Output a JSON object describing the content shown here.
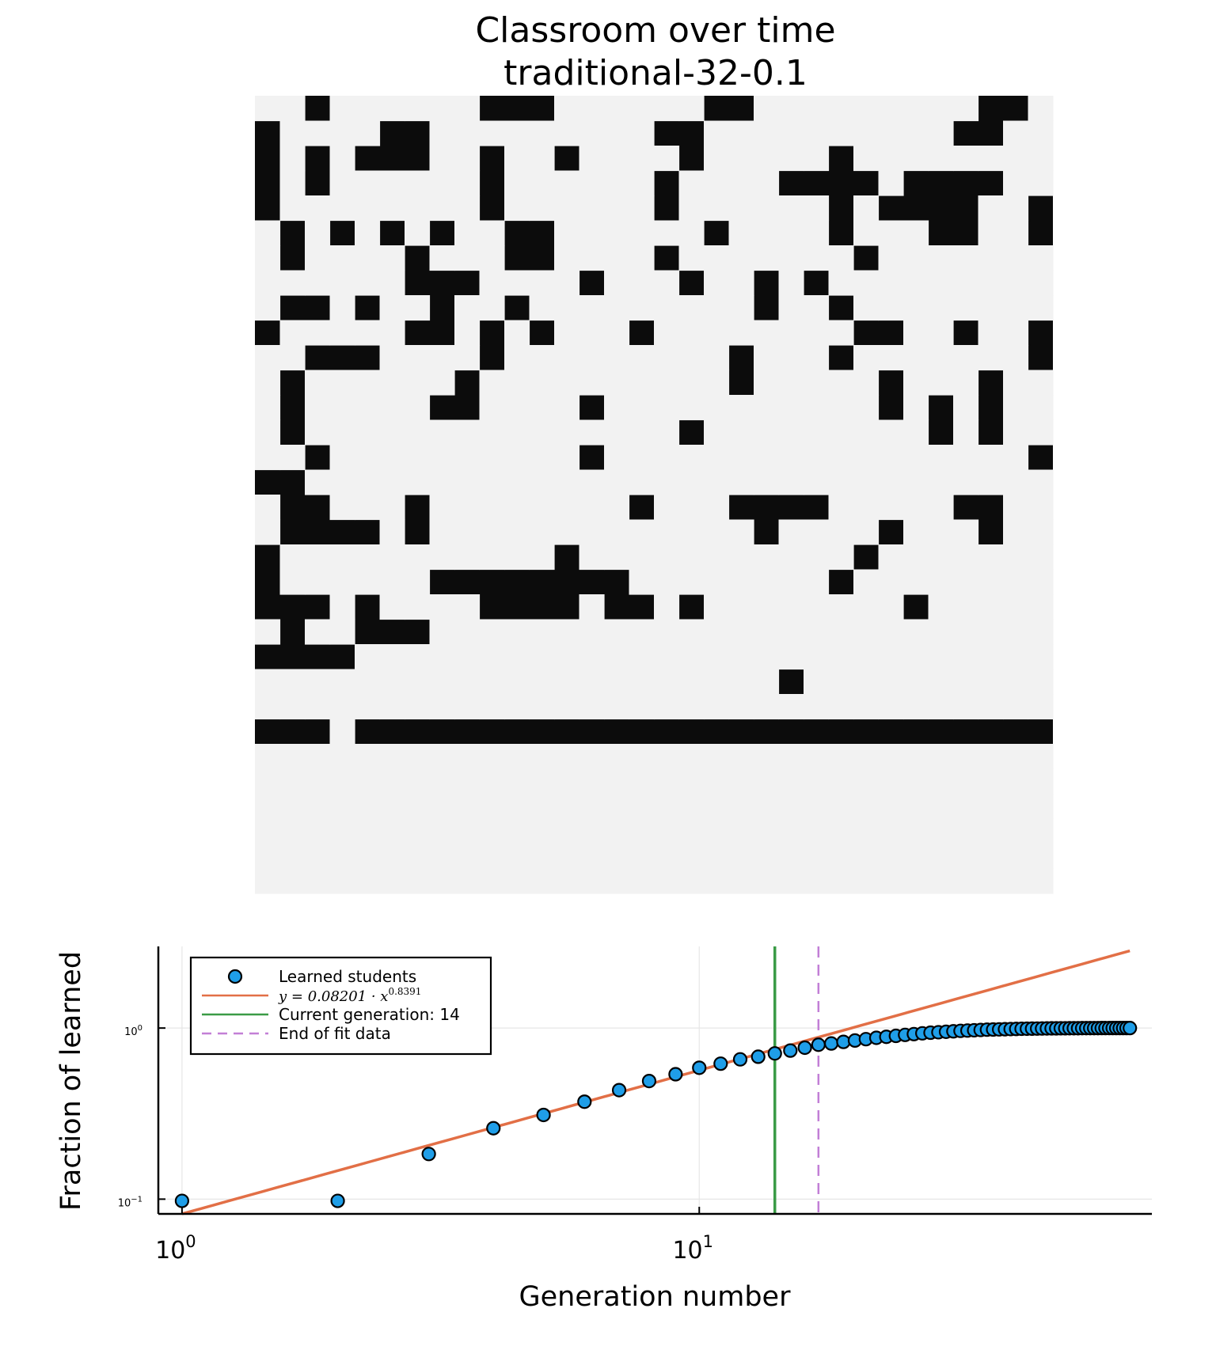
{
  "chart_data": [
    {
      "type": "heatmap",
      "title": "Classroom over time",
      "subtitle": "traditional-32-0.1",
      "rows": 32,
      "cols": 32,
      "colors": {
        "learned": "#f2f2f2",
        "not_learned": "#0c0c0c"
      },
      "grid": [
        "11011111100011111100111111111001",
        "01111001111111110011111111110011",
        "01010001101101111011111011111111",
        "01011111101111110111100001000011",
        "01111111101111110111111010000110",
        "10101010110011111101111011100110",
        "10111101110011110111111101111111",
        "11111100011110111011010111111111",
        "10010110110111111111011011111111",
        "01111100101011101111111100110110",
        "11000111101111111110111011111110",
        "10111111011111111110111110111011",
        "10111110011110111111111110101011",
        "10111111111111111011111111101011",
        "11011111111110111111111111111110",
        "00111111111111111111111111111111",
        "10011101111111101110000111110011",
        "10000101111111111111011110111011",
        "01111111111101111111111101111111",
        "01111110000000011111111011111111",
        "00010111100001001011111111011111",
        "10110001111111111111111111111111",
        "00001111111111111111111111111111",
        "11111111111111111111101111111111",
        "11111111111111111111111111111111",
        "00010000000000000000000000000000",
        "11111111111111111111111111111111",
        "11111111111111111111111111111111",
        "11111111111111111111111111111111",
        "11111111111111111111111111111111",
        "11111111111111111111111111111111",
        "11111111111111111111111111111111"
      ]
    },
    {
      "type": "scatter",
      "xlabel": "Generation number",
      "ylabel": "Fraction of learned",
      "xscale": "log10",
      "yscale": "log10",
      "xlim": [
        0.9,
        75
      ],
      "ylim": [
        0.082,
        3.0
      ],
      "xticks": [
        {
          "value": 1,
          "base": "10",
          "exp": "0"
        },
        {
          "value": 10,
          "base": "10",
          "exp": "1"
        }
      ],
      "yticks": [
        {
          "value": 0.1,
          "base": "10",
          "exp": "−1"
        },
        {
          "value": 1,
          "base": "10",
          "exp": "0"
        }
      ],
      "grid": true,
      "legend_position": "top-left",
      "series": [
        {
          "name": "Learned students",
          "kind": "points",
          "color": "#1f9ee8",
          "x": [
            1,
            2,
            3,
            4,
            5,
            6,
            7,
            8,
            9,
            10,
            11,
            12,
            13,
            14,
            15,
            16,
            17,
            18,
            19,
            20,
            21,
            22,
            23,
            24,
            25,
            26,
            27,
            28,
            29,
            30,
            31,
            32,
            33,
            34,
            35,
            36,
            37,
            38,
            39,
            40,
            41,
            42,
            43,
            44,
            45,
            46,
            47,
            48,
            49,
            50,
            51,
            52,
            53,
            54,
            55,
            56,
            57,
            58,
            59,
            60,
            61,
            62,
            63,
            64,
            65,
            66,
            67,
            68
          ],
          "y": [
            0.0977,
            0.0977,
            0.1836,
            0.2598,
            0.3105,
            0.3711,
            0.4336,
            0.4902,
            0.5371,
            0.5859,
            0.6191,
            0.6563,
            0.6797,
            0.7109,
            0.7383,
            0.7676,
            0.7988,
            0.8125,
            0.8301,
            0.8457,
            0.8613,
            0.877,
            0.8887,
            0.9004,
            0.9121,
            0.9219,
            0.9316,
            0.9395,
            0.9453,
            0.9512,
            0.957,
            0.9629,
            0.9668,
            0.9707,
            0.9746,
            0.9785,
            0.9805,
            0.9824,
            0.9844,
            0.9863,
            0.9883,
            0.9902,
            0.9912,
            0.9922,
            0.9932,
            0.9941,
            0.9951,
            0.9961,
            0.9961,
            0.9971,
            0.9971,
            0.998,
            0.998,
            0.998,
            0.999,
            0.999,
            0.999,
            0.999,
            0.999,
            1.0,
            1.0,
            1.0,
            1.0,
            1.0,
            1.0,
            1.0,
            1.0,
            1.0
          ]
        },
        {
          "name": "y = 0.08201 · x^0.8391",
          "legend_label": {
            "prefix": "y = 0.08201 · x",
            "exponent": "0.8391"
          },
          "kind": "fit",
          "a": 0.08201,
          "b": 0.8391,
          "x_range": [
            1,
            68
          ],
          "color": "#e26f46"
        },
        {
          "name": "Current generation: 14",
          "kind": "vline",
          "x": 14,
          "color": "#3a9b46"
        },
        {
          "name": "End of fit data",
          "kind": "vline-dashed",
          "x": 17,
          "color": "#c27fd6"
        }
      ]
    }
  ]
}
